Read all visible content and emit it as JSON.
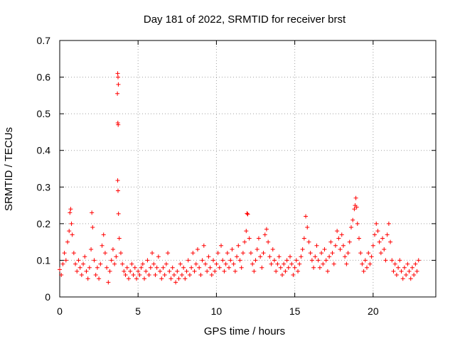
{
  "chart_data": {
    "type": "scatter",
    "title": "Day 181 of 2022, SRMTID for receiver brst",
    "xlabel": "GPS time / hours",
    "ylabel": "SRMTID / TECUs",
    "xlim": [
      0,
      24
    ],
    "ylim": [
      0,
      0.7
    ],
    "x_ticks": [
      0,
      5,
      10,
      15,
      20
    ],
    "x_tick_labels": [
      "0",
      "5",
      "10",
      "15",
      "20"
    ],
    "y_ticks": [
      0,
      0.1,
      0.2,
      0.3,
      0.4,
      0.5,
      0.6,
      0.7
    ],
    "y_tick_labels": [
      "0",
      "0.1",
      "0.2",
      "0.3",
      "0.4",
      "0.5",
      "0.6",
      "0.7"
    ],
    "grid": true,
    "marker": "plus",
    "color": "#ff0000",
    "series": [
      {
        "name": "SRMTID",
        "points": [
          [
            0.0,
            0.075
          ],
          [
            0.1,
            0.06
          ],
          [
            0.2,
            0.09
          ],
          [
            0.3,
            0.12
          ],
          [
            0.4,
            0.1
          ],
          [
            0.5,
            0.15
          ],
          [
            0.6,
            0.18
          ],
          [
            0.65,
            0.23
          ],
          [
            0.7,
            0.24
          ],
          [
            0.75,
            0.2
          ],
          [
            0.8,
            0.17
          ],
          [
            0.9,
            0.12
          ],
          [
            1.0,
            0.09
          ],
          [
            1.1,
            0.07
          ],
          [
            1.2,
            0.1
          ],
          [
            1.3,
            0.08
          ],
          [
            1.4,
            0.06
          ],
          [
            1.5,
            0.09
          ],
          [
            1.6,
            0.11
          ],
          [
            1.7,
            0.07
          ],
          [
            1.8,
            0.05
          ],
          [
            1.9,
            0.08
          ],
          [
            2.0,
            0.13
          ],
          [
            2.05,
            0.23
          ],
          [
            2.1,
            0.19
          ],
          [
            2.2,
            0.1
          ],
          [
            2.3,
            0.06
          ],
          [
            2.4,
            0.08
          ],
          [
            2.5,
            0.05
          ],
          [
            2.6,
            0.09
          ],
          [
            2.7,
            0.14
          ],
          [
            2.8,
            0.17
          ],
          [
            2.9,
            0.12
          ],
          [
            3.0,
            0.08
          ],
          [
            3.1,
            0.04
          ],
          [
            3.2,
            0.07
          ],
          [
            3.3,
            0.1
          ],
          [
            3.4,
            0.13
          ],
          [
            3.5,
            0.09
          ],
          [
            3.6,
            0.11
          ],
          [
            3.7,
            0.61
          ],
          [
            3.72,
            0.6
          ],
          [
            3.74,
            0.58
          ],
          [
            3.68,
            0.555
          ],
          [
            3.71,
            0.475
          ],
          [
            3.73,
            0.47
          ],
          [
            3.7,
            0.318
          ],
          [
            3.72,
            0.29
          ],
          [
            3.75,
            0.227
          ],
          [
            3.8,
            0.16
          ],
          [
            3.9,
            0.12
          ],
          [
            4.0,
            0.09
          ],
          [
            4.1,
            0.07
          ],
          [
            4.2,
            0.06
          ],
          [
            4.3,
            0.08
          ],
          [
            4.4,
            0.05
          ],
          [
            4.5,
            0.07
          ],
          [
            4.6,
            0.09
          ],
          [
            4.7,
            0.06
          ],
          [
            4.8,
            0.08
          ],
          [
            4.9,
            0.05
          ],
          [
            5.0,
            0.07
          ],
          [
            5.1,
            0.06
          ],
          [
            5.2,
            0.08
          ],
          [
            5.3,
            0.09
          ],
          [
            5.4,
            0.05
          ],
          [
            5.5,
            0.07
          ],
          [
            5.6,
            0.1
          ],
          [
            5.7,
            0.06
          ],
          [
            5.8,
            0.08
          ],
          [
            5.9,
            0.12
          ],
          [
            6.0,
            0.09
          ],
          [
            6.1,
            0.06
          ],
          [
            6.2,
            0.08
          ],
          [
            6.3,
            0.11
          ],
          [
            6.4,
            0.07
          ],
          [
            6.5,
            0.05
          ],
          [
            6.6,
            0.08
          ],
          [
            6.7,
            0.06
          ],
          [
            6.8,
            0.09
          ],
          [
            6.9,
            0.12
          ],
          [
            7.0,
            0.07
          ],
          [
            7.1,
            0.05
          ],
          [
            7.2,
            0.08
          ],
          [
            7.3,
            0.06
          ],
          [
            7.4,
            0.04
          ],
          [
            7.5,
            0.07
          ],
          [
            7.6,
            0.05
          ],
          [
            7.7,
            0.09
          ],
          [
            7.8,
            0.06
          ],
          [
            7.9,
            0.08
          ],
          [
            8.0,
            0.05
          ],
          [
            8.1,
            0.07
          ],
          [
            8.2,
            0.1
          ],
          [
            8.3,
            0.06
          ],
          [
            8.4,
            0.08
          ],
          [
            8.5,
            0.12
          ],
          [
            8.6,
            0.07
          ],
          [
            8.7,
            0.09
          ],
          [
            8.8,
            0.13
          ],
          [
            8.9,
            0.08
          ],
          [
            9.0,
            0.06
          ],
          [
            9.1,
            0.1
          ],
          [
            9.2,
            0.14
          ],
          [
            9.3,
            0.09
          ],
          [
            9.4,
            0.07
          ],
          [
            9.5,
            0.11
          ],
          [
            9.6,
            0.08
          ],
          [
            9.7,
            0.06
          ],
          [
            9.8,
            0.1
          ],
          [
            9.9,
            0.07
          ],
          [
            10.0,
            0.09
          ],
          [
            10.1,
            0.12
          ],
          [
            10.2,
            0.08
          ],
          [
            10.3,
            0.14
          ],
          [
            10.4,
            0.1
          ],
          [
            10.5,
            0.07
          ],
          [
            10.6,
            0.09
          ],
          [
            10.7,
            0.12
          ],
          [
            10.8,
            0.08
          ],
          [
            10.9,
            0.1
          ],
          [
            11.0,
            0.13
          ],
          [
            11.1,
            0.09
          ],
          [
            11.2,
            0.07
          ],
          [
            11.3,
            0.11
          ],
          [
            11.4,
            0.14
          ],
          [
            11.5,
            0.1
          ],
          [
            11.6,
            0.08
          ],
          [
            11.7,
            0.12
          ],
          [
            11.8,
            0.15
          ],
          [
            11.9,
            0.18
          ],
          [
            11.95,
            0.228
          ],
          [
            12.0,
            0.226
          ],
          [
            12.1,
            0.16
          ],
          [
            12.2,
            0.12
          ],
          [
            12.3,
            0.09
          ],
          [
            12.4,
            0.07
          ],
          [
            12.5,
            0.1
          ],
          [
            12.6,
            0.13
          ],
          [
            12.7,
            0.16
          ],
          [
            12.8,
            0.11
          ],
          [
            12.9,
            0.08
          ],
          [
            13.0,
            0.12
          ],
          [
            13.1,
            0.17
          ],
          [
            13.2,
            0.185
          ],
          [
            13.3,
            0.15
          ],
          [
            13.4,
            0.11
          ],
          [
            13.5,
            0.09
          ],
          [
            13.6,
            0.13
          ],
          [
            13.7,
            0.1
          ],
          [
            13.8,
            0.07
          ],
          [
            13.9,
            0.09
          ],
          [
            14.0,
            0.11
          ],
          [
            14.1,
            0.08
          ],
          [
            14.2,
            0.06
          ],
          [
            14.3,
            0.09
          ],
          [
            14.4,
            0.07
          ],
          [
            14.5,
            0.1
          ],
          [
            14.6,
            0.08
          ],
          [
            14.7,
            0.11
          ],
          [
            14.8,
            0.09
          ],
          [
            14.9,
            0.06
          ],
          [
            15.0,
            0.08
          ],
          [
            15.1,
            0.1
          ],
          [
            15.2,
            0.07
          ],
          [
            15.3,
            0.09
          ],
          [
            15.4,
            0.11
          ],
          [
            15.5,
            0.13
          ],
          [
            15.6,
            0.16
          ],
          [
            15.7,
            0.22
          ],
          [
            15.8,
            0.19
          ],
          [
            15.9,
            0.15
          ],
          [
            16.0,
            0.12
          ],
          [
            16.1,
            0.1
          ],
          [
            16.2,
            0.08
          ],
          [
            16.3,
            0.11
          ],
          [
            16.4,
            0.14
          ],
          [
            16.5,
            0.1
          ],
          [
            16.6,
            0.08
          ],
          [
            16.7,
            0.12
          ],
          [
            16.8,
            0.09
          ],
          [
            16.9,
            0.13
          ],
          [
            17.0,
            0.1
          ],
          [
            17.1,
            0.07
          ],
          [
            17.2,
            0.11
          ],
          [
            17.3,
            0.15
          ],
          [
            17.4,
            0.12
          ],
          [
            17.5,
            0.09
          ],
          [
            17.6,
            0.14
          ],
          [
            17.7,
            0.18
          ],
          [
            17.8,
            0.16
          ],
          [
            17.9,
            0.13
          ],
          [
            18.0,
            0.17
          ],
          [
            18.1,
            0.14
          ],
          [
            18.2,
            0.11
          ],
          [
            18.3,
            0.09
          ],
          [
            18.4,
            0.12
          ],
          [
            18.5,
            0.15
          ],
          [
            18.6,
            0.19
          ],
          [
            18.7,
            0.21
          ],
          [
            18.8,
            0.24
          ],
          [
            18.85,
            0.25
          ],
          [
            18.9,
            0.27
          ],
          [
            18.95,
            0.245
          ],
          [
            19.0,
            0.2
          ],
          [
            19.1,
            0.16
          ],
          [
            19.2,
            0.12
          ],
          [
            19.3,
            0.09
          ],
          [
            19.4,
            0.07
          ],
          [
            19.5,
            0.1
          ],
          [
            19.6,
            0.08
          ],
          [
            19.7,
            0.12
          ],
          [
            19.8,
            0.09
          ],
          [
            19.9,
            0.11
          ],
          [
            20.0,
            0.14
          ],
          [
            20.1,
            0.17
          ],
          [
            20.2,
            0.2
          ],
          [
            20.3,
            0.18
          ],
          [
            20.4,
            0.15
          ],
          [
            20.5,
            0.12
          ],
          [
            20.6,
            0.16
          ],
          [
            20.7,
            0.13
          ],
          [
            20.8,
            0.1
          ],
          [
            20.9,
            0.17
          ],
          [
            21.0,
            0.2
          ],
          [
            21.1,
            0.15
          ],
          [
            21.2,
            0.1
          ],
          [
            21.3,
            0.07
          ],
          [
            21.4,
            0.09
          ],
          [
            21.5,
            0.06
          ],
          [
            21.6,
            0.08
          ],
          [
            21.7,
            0.1
          ],
          [
            21.8,
            0.07
          ],
          [
            21.9,
            0.05
          ],
          [
            22.0,
            0.08
          ],
          [
            22.1,
            0.06
          ],
          [
            22.2,
            0.09
          ],
          [
            22.3,
            0.07
          ],
          [
            22.4,
            0.05
          ],
          [
            22.5,
            0.08
          ],
          [
            22.6,
            0.06
          ],
          [
            22.7,
            0.09
          ],
          [
            22.8,
            0.07
          ],
          [
            22.9,
            0.1
          ]
        ]
      }
    ]
  }
}
